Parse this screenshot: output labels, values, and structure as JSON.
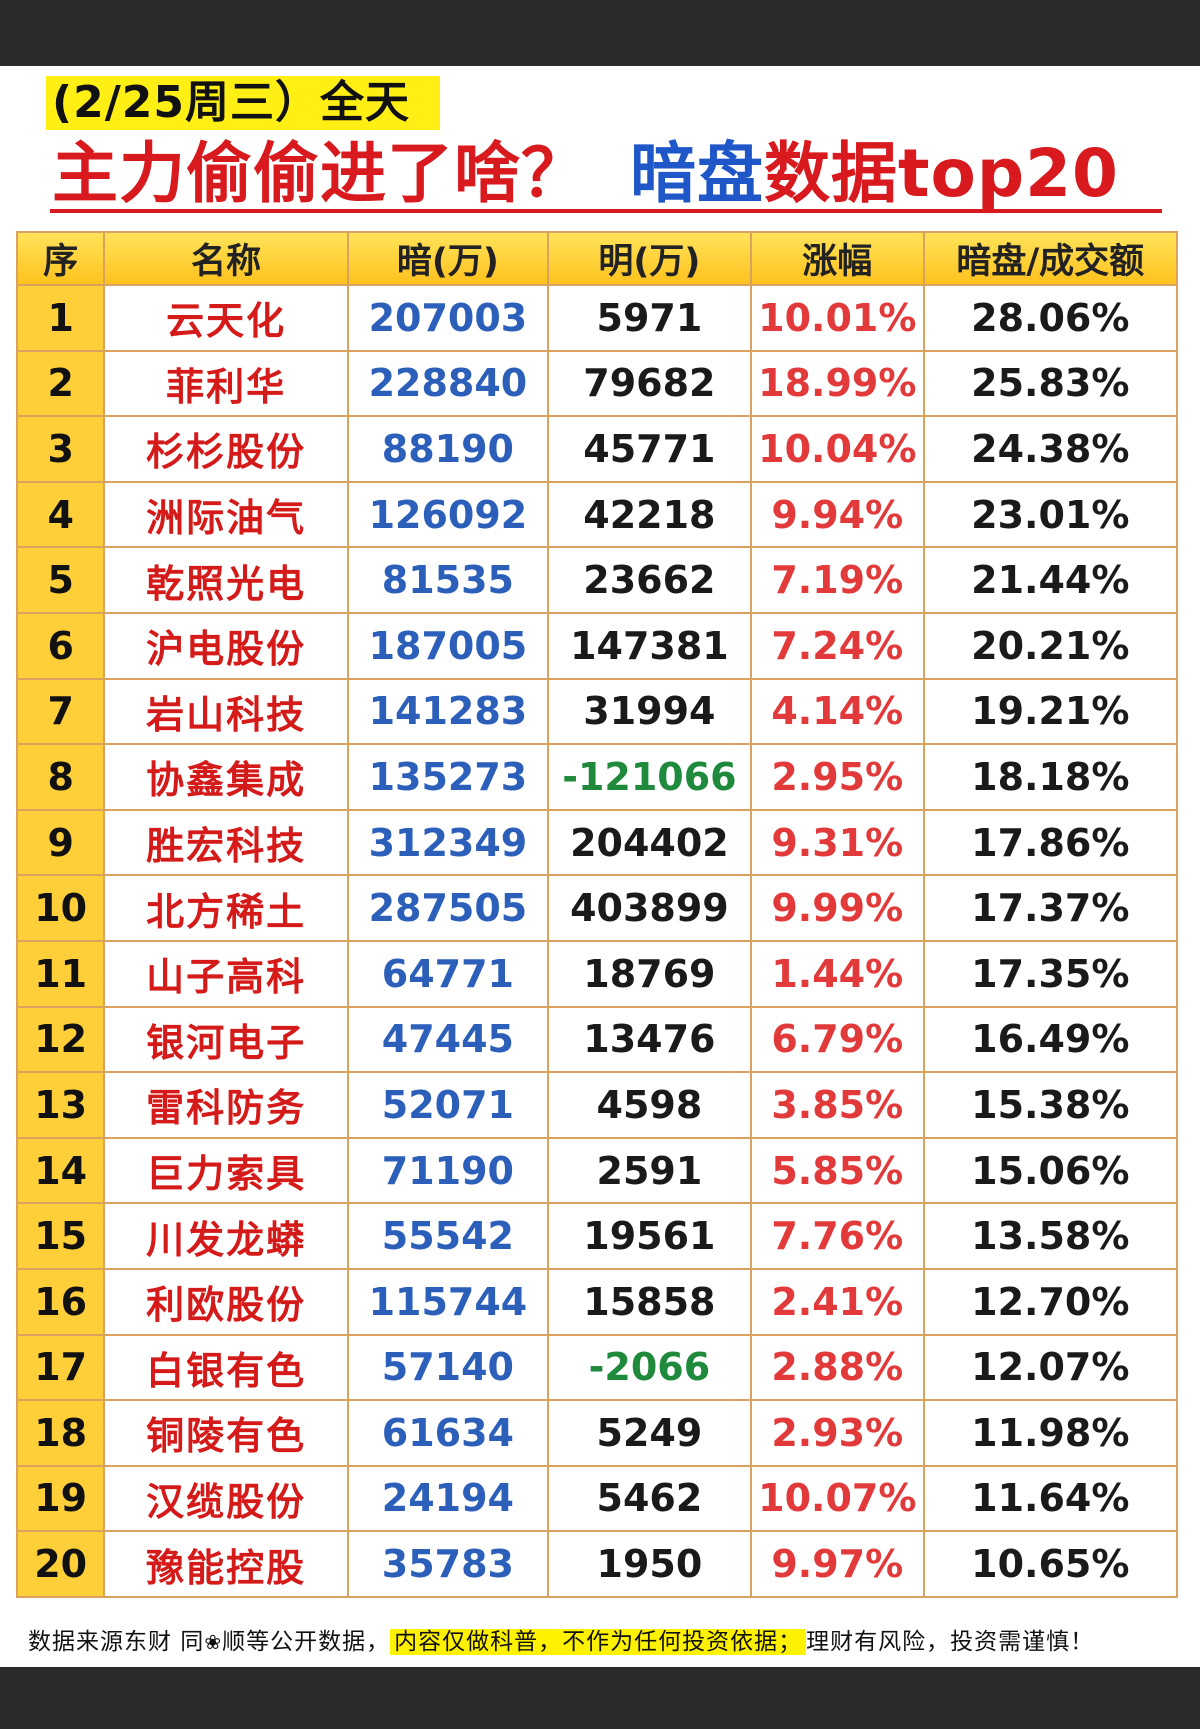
{
  "header": {
    "date_tag": "(2/25周三）全天",
    "headline_part1": "主力偷偷进了啥？",
    "headline_part2": "暗盘",
    "headline_part3": "数据top20"
  },
  "table": {
    "columns": [
      "序",
      "名称",
      "暗(万)",
      "明(万)",
      "涨幅",
      "暗盘/成交额"
    ],
    "rows": [
      {
        "rank": "1",
        "name": "云天化",
        "an": "207003",
        "ming": "5971",
        "rise": "10.01%",
        "ratio": "28.06%"
      },
      {
        "rank": "2",
        "name": "菲利华",
        "an": "228840",
        "ming": "79682",
        "rise": "18.99%",
        "ratio": "25.83%"
      },
      {
        "rank": "3",
        "name": "杉杉股份",
        "an": "88190",
        "ming": "45771",
        "rise": "10.04%",
        "ratio": "24.38%"
      },
      {
        "rank": "4",
        "name": "洲际油气",
        "an": "126092",
        "ming": "42218",
        "rise": "9.94%",
        "ratio": "23.01%"
      },
      {
        "rank": "5",
        "name": "乾照光电",
        "an": "81535",
        "ming": "23662",
        "rise": "7.19%",
        "ratio": "21.44%"
      },
      {
        "rank": "6",
        "name": "沪电股份",
        "an": "187005",
        "ming": "147381",
        "rise": "7.24%",
        "ratio": "20.21%"
      },
      {
        "rank": "7",
        "name": "岩山科技",
        "an": "141283",
        "ming": "31994",
        "rise": "4.14%",
        "ratio": "19.21%"
      },
      {
        "rank": "8",
        "name": "协鑫集成",
        "an": "135273",
        "ming": "-121066",
        "rise": "2.95%",
        "ratio": "18.18%"
      },
      {
        "rank": "9",
        "name": "胜宏科技",
        "an": "312349",
        "ming": "204402",
        "rise": "9.31%",
        "ratio": "17.86%"
      },
      {
        "rank": "10",
        "name": "北方稀土",
        "an": "287505",
        "ming": "403899",
        "rise": "9.99%",
        "ratio": "17.37%"
      },
      {
        "rank": "11",
        "name": "山子高科",
        "an": "64771",
        "ming": "18769",
        "rise": "1.44%",
        "ratio": "17.35%"
      },
      {
        "rank": "12",
        "name": "银河电子",
        "an": "47445",
        "ming": "13476",
        "rise": "6.79%",
        "ratio": "16.49%"
      },
      {
        "rank": "13",
        "name": "雷科防务",
        "an": "52071",
        "ming": "4598",
        "rise": "3.85%",
        "ratio": "15.38%"
      },
      {
        "rank": "14",
        "name": "巨力索具",
        "an": "71190",
        "ming": "2591",
        "rise": "5.85%",
        "ratio": "15.06%"
      },
      {
        "rank": "15",
        "name": "川发龙蟒",
        "an": "55542",
        "ming": "19561",
        "rise": "7.76%",
        "ratio": "13.58%"
      },
      {
        "rank": "16",
        "name": "利欧股份",
        "an": "115744",
        "ming": "15858",
        "rise": "2.41%",
        "ratio": "12.70%"
      },
      {
        "rank": "17",
        "name": "白银有色",
        "an": "57140",
        "ming": "-2066",
        "rise": "2.88%",
        "ratio": "12.07%"
      },
      {
        "rank": "18",
        "name": "铜陵有色",
        "an": "61634",
        "ming": "5249",
        "rise": "2.93%",
        "ratio": "11.98%"
      },
      {
        "rank": "19",
        "name": "汉缆股份",
        "an": "24194",
        "ming": "5462",
        "rise": "10.07%",
        "ratio": "11.64%"
      },
      {
        "rank": "20",
        "name": "豫能控股",
        "an": "35783",
        "ming": "1950",
        "rise": "9.97%",
        "ratio": "10.65%"
      }
    ]
  },
  "footer": {
    "part1": "数据来源东财 同",
    "flower_icon": "flower-icon",
    "part2": "顺等公开数据，",
    "highlight": "内容仅做科普，不作为任何投资依据；",
    "part3": "理财有风险，投资需谨慎！"
  },
  "colors": {
    "title_red": "#d8191e",
    "title_blue": "#1f57c8",
    "name_red": "#d51a1a",
    "value_blue": "#2c5fb9",
    "negative_green": "#1f8a3b",
    "header_gold": "#ffc21d",
    "highlight_yellow": "#fff200"
  }
}
